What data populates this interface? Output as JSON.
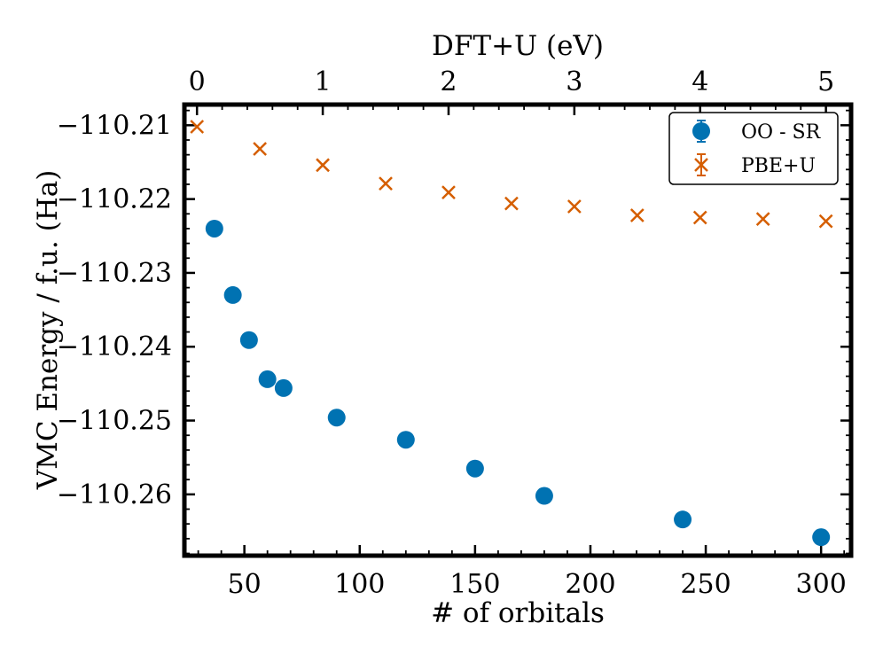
{
  "chart_data": {
    "type": "scatter",
    "title": "",
    "ylabel": "VMC Energy / f.u. (Ha)",
    "xlabel": "# of orbitals",
    "x2label": "DFT+U (eV)",
    "xlim": [
      24,
      313
    ],
    "x2lim": [
      -0.1,
      5.2
    ],
    "ylim": [
      -110.2683,
      -110.2072
    ],
    "x_ticks": [
      50,
      100,
      150,
      200,
      250,
      300
    ],
    "x_tick_labels": [
      "50",
      "100",
      "150",
      "200",
      "250",
      "300"
    ],
    "x2_ticks": [
      0,
      1,
      2,
      3,
      4,
      5
    ],
    "x2_tick_labels": [
      "0",
      "1",
      "2",
      "3",
      "4",
      "5"
    ],
    "y_ticks": [
      -110.21,
      -110.22,
      -110.23,
      -110.24,
      -110.25,
      -110.26
    ],
    "y_tick_labels": [
      "−110.21",
      "−110.22",
      "−110.23",
      "−110.24",
      "−110.25",
      "−110.26"
    ],
    "grid": false,
    "legend_position": "top-right",
    "series": [
      {
        "name": "OO - SR",
        "axis": "bottom",
        "marker": "circle",
        "color": "#0072B2",
        "x": [
          37,
          45,
          52,
          60,
          67,
          90,
          120,
          150,
          180,
          240,
          300
        ],
        "y": [
          -110.224,
          -110.233,
          -110.2391,
          -110.2444,
          -110.2456,
          -110.2496,
          -110.2526,
          -110.2565,
          -110.2602,
          -110.2634,
          -110.2658
        ]
      },
      {
        "name": "PBE+U",
        "axis": "top",
        "marker": "x",
        "color": "#D55E00",
        "x": [
          0,
          0.5,
          1,
          1.5,
          2,
          2.5,
          3,
          3.5,
          4,
          4.5,
          5
        ],
        "y": [
          -110.2102,
          -110.2132,
          -110.2154,
          -110.2179,
          -110.2191,
          -110.2206,
          -110.221,
          -110.2222,
          -110.2225,
          -110.2227,
          -110.223
        ]
      }
    ]
  }
}
